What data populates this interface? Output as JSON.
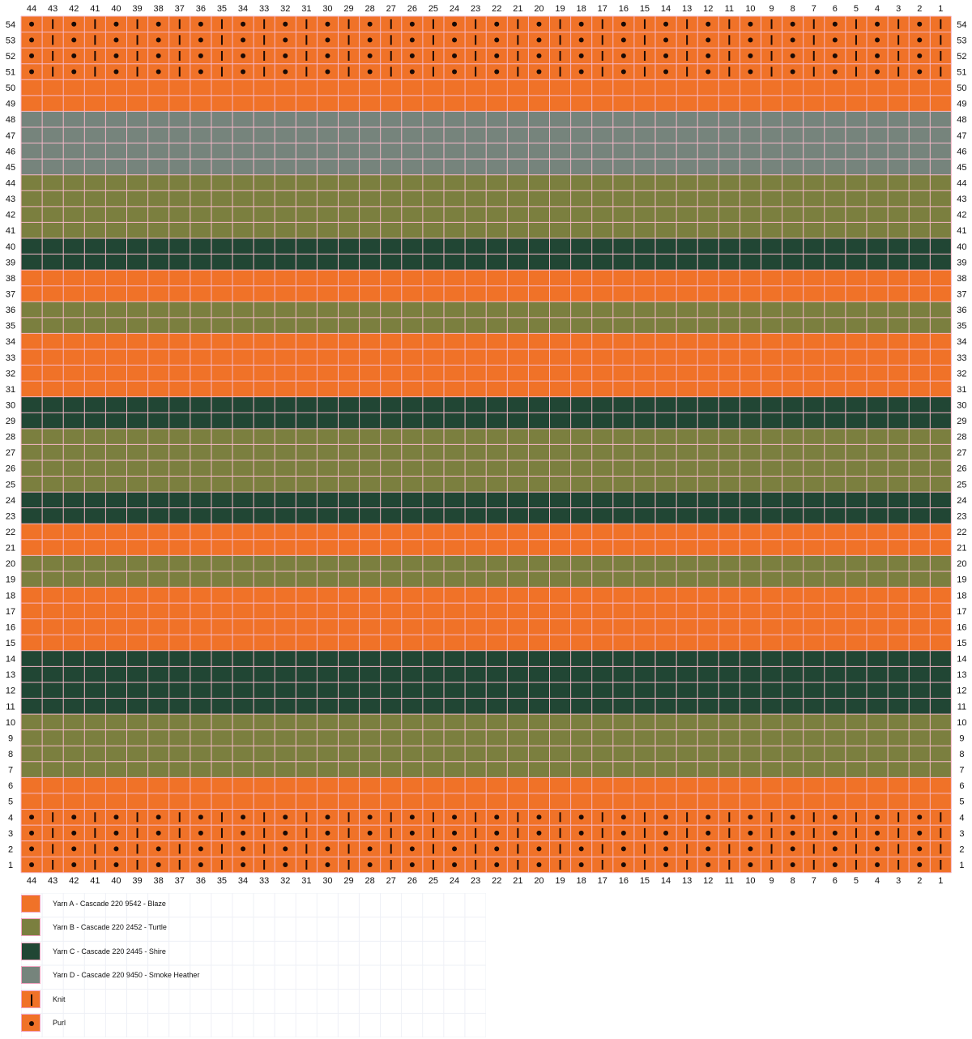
{
  "chart_data": {
    "type": "knitting-colorwork-chart",
    "stitches": 44,
    "rows": 54,
    "column_labels": [
      "44",
      "43",
      "42",
      "41",
      "40",
      "39",
      "38",
      "37",
      "36",
      "35",
      "34",
      "33",
      "32",
      "31",
      "30",
      "29",
      "28",
      "27",
      "26",
      "25",
      "24",
      "23",
      "22",
      "21",
      "20",
      "19",
      "18",
      "17",
      "16",
      "15",
      "14",
      "13",
      "12",
      "11",
      "10",
      "9",
      "8",
      "7",
      "6",
      "5",
      "4",
      "3",
      "2",
      "1"
    ],
    "row_labels_top_to_bottom": [
      "54",
      "53",
      "52",
      "51",
      "50",
      "49",
      "48",
      "47",
      "46",
      "45",
      "44",
      "43",
      "42",
      "41",
      "40",
      "39",
      "38",
      "37",
      "36",
      "35",
      "34",
      "33",
      "32",
      "31",
      "30",
      "29",
      "28",
      "27",
      "26",
      "25",
      "24",
      "23",
      "22",
      "21",
      "20",
      "19",
      "18",
      "17",
      "16",
      "15",
      "14",
      "13",
      "12",
      "11",
      "10",
      "9",
      "8",
      "7",
      "6",
      "5",
      "4",
      "3",
      "2",
      "1"
    ],
    "yarn_colors": {
      "A": "#f07228",
      "B": "#7b7f3f",
      "C": "#214634",
      "D": "#76847c"
    },
    "row_bands": [
      {
        "rows": [
          1,
          6
        ],
        "yarn": "A"
      },
      {
        "rows": [
          7,
          10
        ],
        "yarn": "B"
      },
      {
        "rows": [
          11,
          14
        ],
        "yarn": "C"
      },
      {
        "rows": [
          15,
          18
        ],
        "yarn": "A"
      },
      {
        "rows": [
          19,
          20
        ],
        "yarn": "B"
      },
      {
        "rows": [
          21,
          22
        ],
        "yarn": "A"
      },
      {
        "rows": [
          23,
          24
        ],
        "yarn": "C"
      },
      {
        "rows": [
          25,
          28
        ],
        "yarn": "B"
      },
      {
        "rows": [
          29,
          30
        ],
        "yarn": "C"
      },
      {
        "rows": [
          31,
          34
        ],
        "yarn": "A"
      },
      {
        "rows": [
          35,
          36
        ],
        "yarn": "B"
      },
      {
        "rows": [
          37,
          38
        ],
        "yarn": "A"
      },
      {
        "rows": [
          39,
          40
        ],
        "yarn": "C"
      },
      {
        "rows": [
          41,
          44
        ],
        "yarn": "B"
      },
      {
        "rows": [
          45,
          48
        ],
        "yarn": "D"
      },
      {
        "rows": [
          49,
          54
        ],
        "yarn": "A"
      }
    ],
    "ribbing_rows": [
      1,
      2,
      3,
      4,
      51,
      52,
      53,
      54
    ],
    "ribbing_pattern": "knit on odd-numbered stitches, purl on even-numbered stitches",
    "grid_line_color": "#f5b8c8",
    "symbol_color": "#1a0a05"
  },
  "legend": {
    "items": [
      {
        "type": "color",
        "color": "#f07228",
        "label": "Yarn A - Cascade 220 9542 - Blaze"
      },
      {
        "type": "color",
        "color": "#7b7f3f",
        "label": "Yarn B - Cascade 220 2452 - Turtle"
      },
      {
        "type": "color",
        "color": "#214634",
        "label": "Yarn C - Cascade 220 2445 - Shire"
      },
      {
        "type": "color",
        "color": "#76847c",
        "label": "Yarn D - Cascade 220 9450 - Smoke Heather"
      },
      {
        "type": "knit",
        "color": "#f07228",
        "label": "Knit"
      },
      {
        "type": "purl",
        "color": "#f07228",
        "label": "Purl"
      }
    ]
  }
}
